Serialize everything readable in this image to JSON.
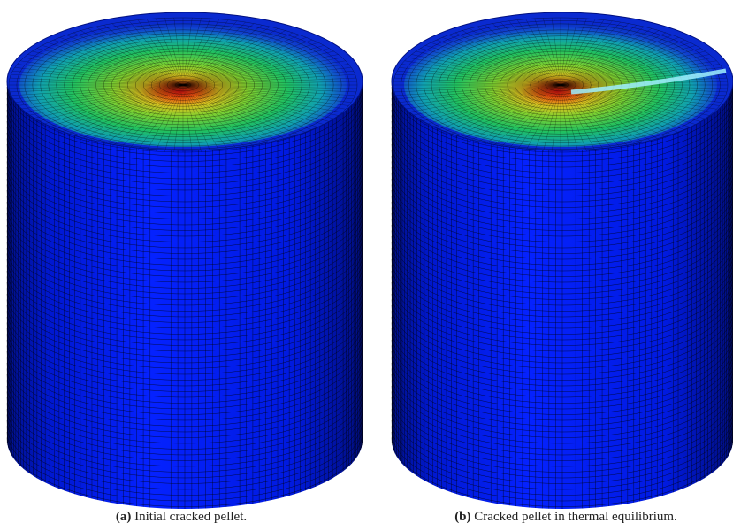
{
  "figure": {
    "subfigures": [
      {
        "label": "(a)",
        "caption": "Initial cracked pellet."
      },
      {
        "label": "(b)",
        "caption": "Cracked pellet in thermal equilibrium."
      }
    ]
  }
}
